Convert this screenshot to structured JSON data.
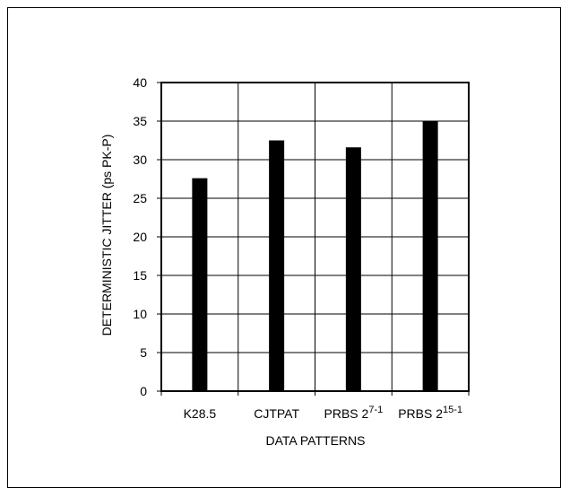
{
  "chart_data": {
    "type": "bar",
    "title": "",
    "xlabel": "DATA PATTERNS",
    "ylabel": "DETERMINISTIC JITTER (ps PK-P)",
    "ylim": [
      0,
      40
    ],
    "yticks": [
      "0",
      "5",
      "10",
      "15",
      "20",
      "25",
      "30",
      "35",
      "40"
    ],
    "grid": true,
    "bar_color": "#000000",
    "categories": [
      {
        "base": "K28.5",
        "sup": "",
        "tail": ""
      },
      {
        "base": "CJTPAT",
        "sup": "",
        "tail": ""
      },
      {
        "base": "PRBS 2",
        "sup": "7-1",
        "tail": ""
      },
      {
        "base": "PRBS 2",
        "sup": "15-1",
        "tail": ""
      }
    ],
    "values": [
      27.6,
      32.5,
      31.6,
      35.0
    ]
  }
}
